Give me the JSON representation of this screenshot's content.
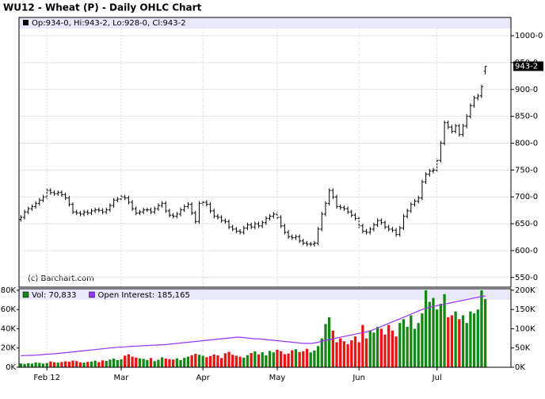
{
  "chart_data": [
    {
      "type": "ohlc",
      "title": "WU12 - Wheat (P) - Daily OHLC Chart",
      "legend_text": "Op:934-0, Hi:943-2, Lo:928-0, Cl:943-2",
      "copyright": "(c) Barchart.com",
      "last_label": "943-2",
      "color": "#000000",
      "grid": true,
      "ylim": [
        532,
        1034
      ],
      "yticks": [
        {
          "value": 550,
          "label": "550-0"
        },
        {
          "value": 600,
          "label": "600-0"
        },
        {
          "value": 650,
          "label": "650-0"
        },
        {
          "value": 700,
          "label": "700-0"
        },
        {
          "value": 750,
          "label": "750-0"
        },
        {
          "value": 800,
          "label": "800-0"
        },
        {
          "value": 850,
          "label": "850-0"
        },
        {
          "value": 900,
          "label": "900-0"
        },
        {
          "value": 950,
          "label": "950-0"
        },
        {
          "value": 1000,
          "label": "1000-0"
        }
      ],
      "open": [
        658,
        662,
        672,
        678,
        682,
        688,
        694,
        700,
        712,
        708,
        706,
        708,
        704,
        698,
        686,
        672,
        670,
        668,
        672,
        670,
        674,
        676,
        675,
        672,
        676,
        684,
        694,
        696,
        700,
        698,
        690,
        678,
        670,
        672,
        676,
        676,
        672,
        678,
        684,
        688,
        674,
        666,
        664,
        668,
        676,
        682,
        686,
        670,
        654,
        688,
        690,
        686,
        674,
        664,
        662,
        656,
        654,
        644,
        640,
        636,
        634,
        642,
        648,
        644,
        650,
        646,
        652,
        660,
        664,
        668,
        662,
        646,
        634,
        626,
        624,
        626,
        618,
        614,
        612,
        612,
        614,
        640,
        668,
        688,
        712,
        700,
        682,
        680,
        678,
        672,
        666,
        660,
        646,
        636,
        634,
        640,
        648,
        656,
        652,
        644,
        640,
        638,
        630,
        642,
        664,
        674,
        686,
        692,
        698,
        728,
        742,
        748,
        750,
        768,
        800,
        838,
        830,
        822,
        832,
        816,
        832,
        850,
        870,
        884,
        888,
        934
      ],
      "high": [
        666,
        676,
        682,
        686,
        692,
        698,
        704,
        716,
        716,
        712,
        712,
        712,
        708,
        702,
        690,
        676,
        674,
        676,
        676,
        678,
        680,
        680,
        679,
        680,
        688,
        698,
        700,
        704,
        704,
        702,
        694,
        682,
        676,
        680,
        680,
        680,
        682,
        688,
        692,
        692,
        678,
        670,
        672,
        680,
        686,
        690,
        690,
        674,
        692,
        694,
        694,
        690,
        678,
        668,
        666,
        660,
        658,
        648,
        644,
        640,
        646,
        652,
        652,
        654,
        654,
        656,
        664,
        668,
        672,
        672,
        666,
        650,
        638,
        630,
        630,
        630,
        622,
        618,
        616,
        618,
        644,
        672,
        692,
        716,
        716,
        704,
        686,
        684,
        682,
        676,
        670,
        664,
        650,
        640,
        644,
        652,
        660,
        660,
        656,
        648,
        644,
        642,
        646,
        668,
        678,
        690,
        696,
        702,
        732,
        746,
        752,
        754,
        772,
        804,
        842,
        842,
        834,
        836,
        836,
        836,
        854,
        874,
        888,
        892,
        909,
        943.25
      ],
      "low": [
        654,
        658,
        668,
        674,
        678,
        684,
        690,
        696,
        704,
        702,
        702,
        700,
        694,
        682,
        668,
        666,
        664,
        664,
        666,
        666,
        670,
        671,
        668,
        668,
        672,
        680,
        690,
        692,
        694,
        686,
        674,
        666,
        666,
        668,
        672,
        668,
        668,
        674,
        680,
        670,
        662,
        660,
        660,
        664,
        672,
        678,
        666,
        650,
        650,
        684,
        682,
        670,
        660,
        658,
        652,
        650,
        640,
        636,
        632,
        630,
        630,
        638,
        640,
        640,
        642,
        642,
        648,
        656,
        660,
        658,
        642,
        630,
        622,
        620,
        620,
        614,
        610,
        608,
        608,
        608,
        610,
        636,
        664,
        684,
        696,
        678,
        676,
        674,
        668,
        662,
        656,
        642,
        632,
        630,
        630,
        636,
        644,
        648,
        640,
        636,
        634,
        626,
        626,
        638,
        660,
        670,
        682,
        688,
        694,
        724,
        738,
        744,
        746,
        764,
        796,
        826,
        818,
        818,
        812,
        812,
        828,
        846,
        866,
        880,
        884,
        928
      ],
      "close": [
        662,
        672,
        678,
        682,
        688,
        694,
        700,
        712,
        708,
        706,
        708,
        704,
        698,
        686,
        672,
        670,
        668,
        672,
        670,
        674,
        676,
        675,
        672,
        676,
        684,
        694,
        696,
        700,
        698,
        690,
        678,
        670,
        672,
        676,
        676,
        672,
        678,
        684,
        688,
        674,
        666,
        664,
        668,
        676,
        682,
        686,
        670,
        654,
        688,
        690,
        686,
        674,
        664,
        662,
        656,
        654,
        644,
        640,
        636,
        634,
        642,
        648,
        644,
        650,
        646,
        652,
        660,
        664,
        668,
        662,
        646,
        634,
        626,
        624,
        626,
        618,
        614,
        612,
        612,
        614,
        640,
        668,
        688,
        712,
        700,
        682,
        680,
        678,
        672,
        666,
        660,
        646,
        636,
        634,
        640,
        648,
        656,
        652,
        644,
        640,
        638,
        630,
        642,
        664,
        674,
        686,
        692,
        698,
        728,
        742,
        748,
        750,
        768,
        800,
        838,
        830,
        822,
        832,
        816,
        832,
        850,
        870,
        884,
        888,
        905,
        943.25
      ]
    },
    {
      "type": "volume",
      "categories": [
        null,
        null,
        null,
        null,
        null,
        null,
        null,
        "Feb 12",
        null,
        null,
        null,
        null,
        null,
        null,
        null,
        null,
        null,
        null,
        null,
        null,
        null,
        null,
        null,
        null,
        null,
        null,
        null,
        "Mar",
        null,
        null,
        null,
        null,
        null,
        null,
        null,
        null,
        null,
        null,
        null,
        null,
        null,
        null,
        null,
        null,
        null,
        null,
        null,
        null,
        null,
        "Apr",
        null,
        null,
        null,
        null,
        null,
        null,
        null,
        null,
        null,
        null,
        null,
        null,
        null,
        null,
        null,
        null,
        null,
        null,
        null,
        "May",
        null,
        null,
        null,
        null,
        null,
        null,
        null,
        null,
        null,
        null,
        null,
        null,
        null,
        null,
        null,
        null,
        null,
        null,
        null,
        null,
        null,
        "Jun",
        null,
        null,
        null,
        null,
        null,
        null,
        null,
        null,
        null,
        null,
        null,
        null,
        null,
        null,
        null,
        null,
        null,
        null,
        null,
        null,
        "Jul",
        null,
        null,
        null,
        null,
        null,
        null,
        null,
        null,
        null,
        null,
        null,
        null,
        null
      ],
      "down_color": "#ee1111",
      "ylim": [
        0,
        81600
      ],
      "yticks": [
        {
          "value": 0,
          "label": "0K"
        },
        {
          "value": 20000,
          "label": "20K"
        },
        {
          "value": 40000,
          "label": "40K"
        },
        {
          "value": 60000,
          "label": "60K"
        },
        {
          "value": 80000,
          "label": "80K"
        }
      ],
      "y2lim": [
        0,
        204000
      ],
      "y2ticks": [
        {
          "value": 0,
          "label": "0K"
        },
        {
          "value": 50000,
          "label": "50K"
        },
        {
          "value": 100000,
          "label": "100K"
        },
        {
          "value": 150000,
          "label": "150K"
        },
        {
          "value": 200000,
          "label": "200K"
        }
      ],
      "series": [
        {
          "name": "Vol: 70,833",
          "color": "#118811",
          "values": [
            4000,
            3500,
            4200,
            3800,
            5000,
            4600,
            3900,
            4400,
            6000,
            5200,
            4800,
            5500,
            6200,
            5800,
            7000,
            6400,
            5200,
            4800,
            5600,
            6000,
            6800,
            5400,
            7200,
            6600,
            8000,
            9000,
            7400,
            8200,
            12000,
            13500,
            11000,
            10000,
            9200,
            8800,
            7600,
            9600,
            6400,
            7800,
            10400,
            9000,
            8400,
            8000,
            9200,
            7400,
            9800,
            11000,
            12500,
            14000,
            13000,
            12000,
            10500,
            11600,
            13200,
            12400,
            9600,
            14500,
            16000,
            13000,
            12000,
            11000,
            10000,
            12600,
            14800,
            16500,
            13400,
            15600,
            12400,
            17000,
            15500,
            18200,
            16800,
            13600,
            14200,
            17600,
            18800,
            15800,
            16600,
            19200,
            15400,
            17400,
            22000,
            30000,
            45000,
            52000,
            38000,
            26000,
            30000,
            27000,
            24000,
            28000,
            32000,
            26000,
            44000,
            30000,
            38000,
            36000,
            42000,
            40000,
            34000,
            44000,
            38000,
            32000,
            46000,
            50000,
            42000,
            54000,
            40000,
            46000,
            56000,
            80000,
            68000,
            72000,
            60000,
            66000,
            76000,
            52000,
            54000,
            58000,
            50000,
            54000,
            46000,
            58000,
            56000,
            60000,
            80000,
            70833
          ]
        },
        {
          "name": "Open Interest: 185,165",
          "color": "#9933ff",
          "axis": "y2",
          "values": [
            30000,
            30500,
            31000,
            31000,
            31500,
            32000,
            33000,
            34000,
            34500,
            35000,
            36000,
            37000,
            38000,
            39000,
            40000,
            41000,
            42000,
            43000,
            44000,
            45000,
            46000,
            47000,
            48000,
            49000,
            50000,
            51000,
            52000,
            52500,
            53000,
            54000,
            54500,
            55000,
            55500,
            56000,
            56500,
            57000,
            57500,
            58000,
            58500,
            59000,
            60000,
            61000,
            62000,
            63000,
            64000,
            65000,
            66000,
            67000,
            68000,
            69000,
            70000,
            71000,
            72000,
            73000,
            74000,
            75000,
            76000,
            77000,
            78000,
            78000,
            77000,
            76000,
            75000,
            74000,
            74000,
            73000,
            72000,
            71000,
            70000,
            69000,
            68000,
            67000,
            66000,
            65000,
            64000,
            63000,
            62000,
            62000,
            62000,
            63000,
            65000,
            68000,
            70000,
            72000,
            74000,
            76000,
            78000,
            80000,
            82000,
            84000,
            86000,
            88000,
            90000,
            92000,
            95000,
            98000,
            102000,
            106000,
            110000,
            114000,
            118000,
            122000,
            126000,
            130000,
            134000,
            138000,
            142000,
            146000,
            150000,
            153000,
            156000,
            158000,
            160000,
            162000,
            164000,
            166000,
            168000,
            170000,
            172000,
            174000,
            176000,
            178000,
            180000,
            182000,
            184000,
            185165
          ]
        }
      ]
    }
  ]
}
